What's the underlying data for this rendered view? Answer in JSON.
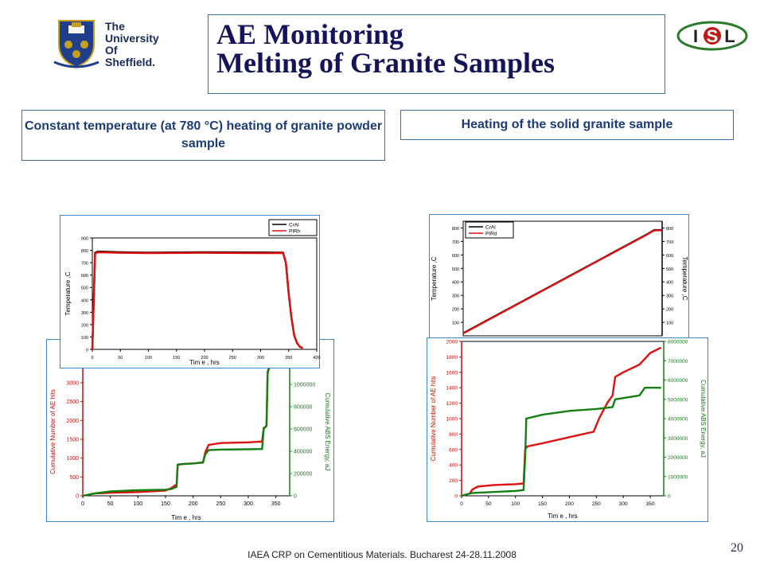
{
  "header": {
    "title_line1": "AE Monitoring",
    "title_line2": "Melting of Granite Samples",
    "university": [
      "The",
      "University",
      "Of",
      "Sheffield."
    ],
    "isl_logo": {
      "left": "I",
      "mid": "S",
      "right": "L"
    }
  },
  "subtitles": {
    "left": "Constant temperature (at 780 °C) heating of granite powder sample",
    "right": "Heating of the solid granite sample"
  },
  "footer": {
    "text": "IAEA CRP on Cementitious Materials. Bucharest 24-28.11.2008",
    "slide_number": "20"
  },
  "colors": {
    "title": "#14145a",
    "subtitle": "#1c3c78",
    "border": "#3a6fa8",
    "series_red": "#e01010",
    "series_green": "#128012"
  },
  "chart_data": [
    {
      "id": "temp_powder",
      "type": "line",
      "xlabel": "Tim e , hrs",
      "ylabel": "Temperature ,C",
      "xlim": [
        0,
        400
      ],
      "ylim": [
        0,
        900
      ],
      "xticks": [
        "0",
        "50",
        "100",
        "150",
        "200",
        "250",
        "300",
        "350",
        "400"
      ],
      "yticks": [
        "0",
        "100",
        "200",
        "300",
        "400",
        "500",
        "600",
        "700",
        "800",
        "900"
      ],
      "legend": [
        "CrAl",
        "PIRh"
      ],
      "series": [
        {
          "name": "CrAl",
          "color": "#000000",
          "x": [
            0,
            5,
            10,
            50,
            100,
            200,
            300,
            340,
            345,
            350,
            355,
            360,
            365,
            370,
            375
          ],
          "y": [
            0,
            780,
            790,
            785,
            782,
            785,
            783,
            782,
            700,
            450,
            250,
            110,
            50,
            20,
            10
          ]
        },
        {
          "name": "PIRh",
          "color": "#e01010",
          "x": [
            0,
            5,
            10,
            50,
            100,
            200,
            300,
            340,
            345,
            350,
            355,
            360,
            365,
            370,
            375
          ],
          "y": [
            0,
            775,
            785,
            780,
            778,
            780,
            778,
            778,
            700,
            450,
            250,
            110,
            50,
            20,
            10
          ]
        }
      ]
    },
    {
      "id": "ae_powder",
      "type": "line",
      "xlabel": "Tim e , hrs",
      "ylabel": "Cumulative Number of AE hits",
      "ylabel_right": "Cumulative ABS Energy, aJ",
      "xlim": [
        0,
        375
      ],
      "ylim": [
        0,
        3400
      ],
      "ylim_right": [
        0,
        1150000
      ],
      "xticks": [
        "0",
        "50",
        "100",
        "150",
        "200",
        "250",
        "300",
        "350"
      ],
      "yticks": [
        "0",
        "500",
        "1000",
        "1500",
        "2000",
        "2500",
        "3000"
      ],
      "yticks_right": [
        "0",
        "200000",
        "400000",
        "600000",
        "800000",
        "1000000"
      ],
      "series": [
        {
          "name": "Cumulative Number of AE hits",
          "color": "#e01010",
          "x": [
            0,
            20,
            50,
            100,
            150,
            160,
            170,
            172,
            180,
            200,
            218,
            222,
            228,
            250,
            300,
            325,
            328,
            333,
            335,
            338
          ],
          "y": [
            0,
            60,
            80,
            100,
            140,
            200,
            300,
            820,
            840,
            860,
            880,
            1150,
            1350,
            1400,
            1420,
            1440,
            1800,
            1850,
            3300,
            3400
          ]
        },
        {
          "name": "Cumulative ABS Energy",
          "color": "#128012",
          "x": [
            0,
            20,
            50,
            100,
            150,
            160,
            170,
            172,
            180,
            200,
            218,
            222,
            228,
            250,
            300,
            325,
            328,
            333,
            335,
            338
          ],
          "y": [
            0,
            20000,
            40000,
            50000,
            55000,
            60000,
            80000,
            280000,
            285000,
            290000,
            300000,
            370000,
            410000,
            415000,
            418000,
            420000,
            600000,
            630000,
            1100000,
            1150000
          ]
        }
      ]
    },
    {
      "id": "temp_solid",
      "type": "line",
      "xlabel": "",
      "ylabel": "Temperature ,C",
      "ylabel_right": "Temperature ,C",
      "xlim": [
        0,
        1
      ],
      "ylim": [
        0,
        850
      ],
      "yticks": [
        "100",
        "200",
        "300",
        "400",
        "500",
        "600",
        "700",
        "800"
      ],
      "yticks_right": [
        "100",
        "200",
        "300",
        "400",
        "500",
        "600",
        "700",
        "800"
      ],
      "legend": [
        "CrAl",
        "PIRd"
      ],
      "series": [
        {
          "name": "CrAl",
          "color": "#000000",
          "x": [
            0,
            0.92,
            0.96,
            1.0
          ],
          "y": [
            20,
            750,
            785,
            785
          ]
        },
        {
          "name": "PIRd",
          "color": "#e01010",
          "x": [
            0,
            0.92,
            0.96,
            1.0
          ],
          "y": [
            18,
            748,
            782,
            782
          ]
        }
      ]
    },
    {
      "id": "ae_solid",
      "type": "line",
      "xlabel": "Tim e , hrs",
      "ylabel": "Cumulative Number of AE hits",
      "ylabel_right": "Cumulative ABS Energy, aJ",
      "xlim": [
        0,
        375
      ],
      "ylim": [
        0,
        2000
      ],
      "ylim_right": [
        0,
        8000000
      ],
      "xticks": [
        "0",
        "50",
        "100",
        "150",
        "200",
        "250",
        "300",
        "350"
      ],
      "yticks": [
        "0",
        "200",
        "400",
        "600",
        "800",
        "1000",
        "1200",
        "1400",
        "1600",
        "1800",
        "2000"
      ],
      "yticks_right": [
        "0",
        "1000000",
        "2000000",
        "3000000",
        "4000000",
        "5000000",
        "6000000",
        "7000000",
        "8000000"
      ],
      "series": [
        {
          "name": "Cumulative Number of AE hits",
          "color": "#e01010",
          "x": [
            0,
            15,
            20,
            30,
            60,
            100,
            115,
            118,
            122,
            150,
            200,
            245,
            255,
            270,
            280,
            285,
            300,
            330,
            350,
            370
          ],
          "y": [
            0,
            30,
            80,
            120,
            140,
            150,
            160,
            600,
            640,
            680,
            760,
            830,
            1000,
            1200,
            1300,
            1540,
            1600,
            1700,
            1850,
            1920
          ]
        },
        {
          "name": "Cumulative ABS Energy",
          "color": "#128012",
          "x": [
            0,
            20,
            60,
            100,
            115,
            118,
            120,
            150,
            200,
            250,
            280,
            285,
            330,
            340,
            370
          ],
          "y": [
            0,
            150000,
            200000,
            250000,
            300000,
            2000000,
            4000000,
            4200000,
            4400000,
            4500000,
            4600000,
            5000000,
            5200000,
            5600000,
            5600000
          ]
        }
      ]
    }
  ]
}
